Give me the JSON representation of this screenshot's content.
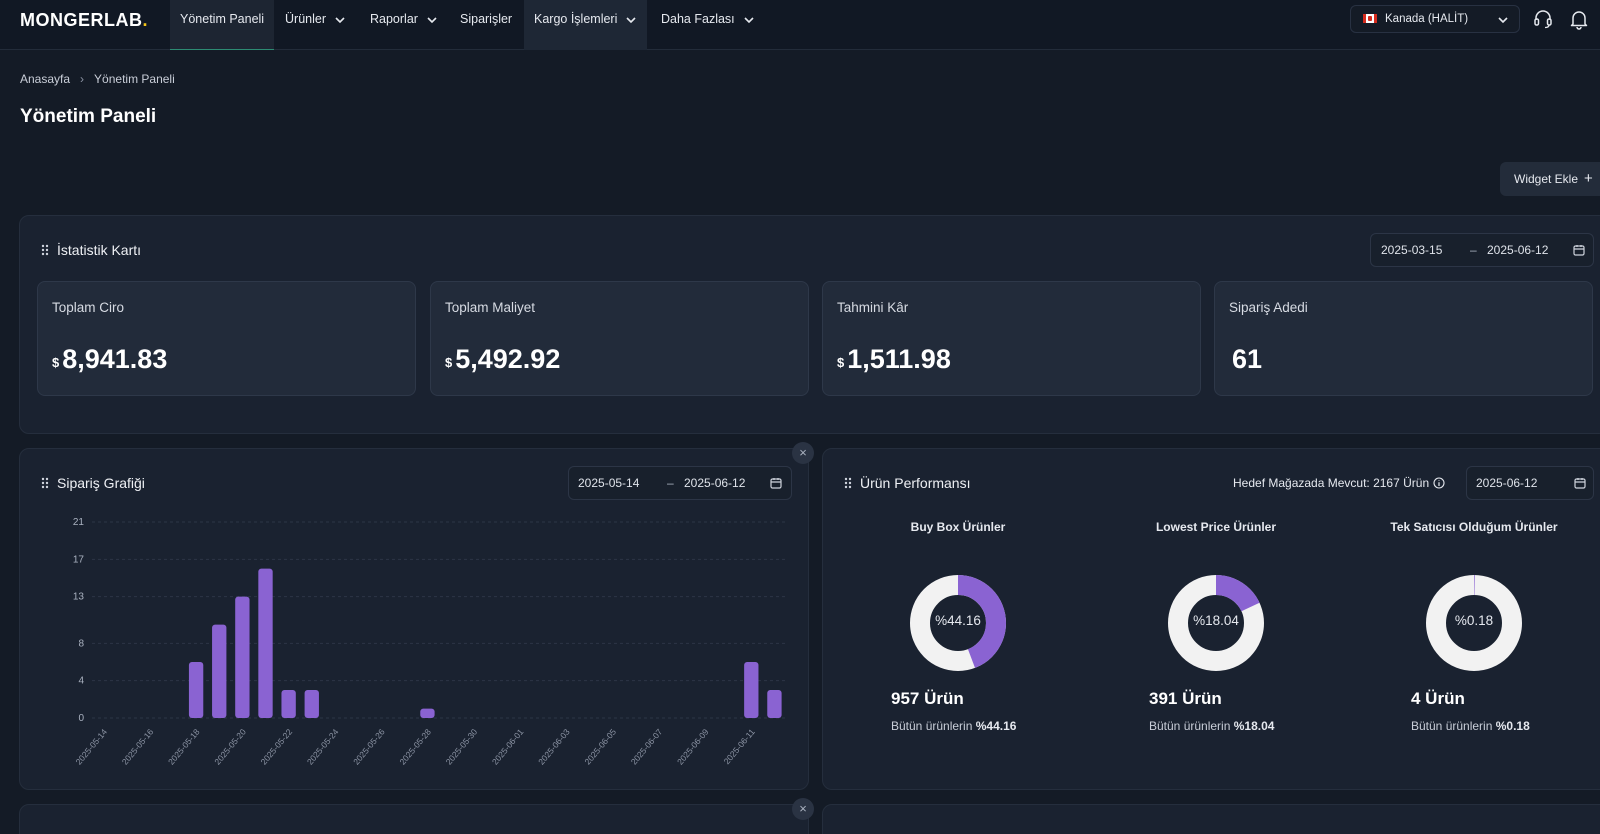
{
  "brand": {
    "logo_text": "MONGERLAB",
    "logo_dot": ".",
    "accent": "#8a63d2",
    "dot_color": "#f5c518"
  },
  "nav": {
    "items": [
      {
        "label": "Yönetim Paneli",
        "has_dropdown": false
      },
      {
        "label": "Ürünler",
        "has_dropdown": true
      },
      {
        "label": "Raporlar",
        "has_dropdown": true
      },
      {
        "label": "Siparişler",
        "has_dropdown": false
      },
      {
        "label": "Kargo İşlemleri",
        "has_dropdown": true
      },
      {
        "label": "Daha Fazlası",
        "has_dropdown": true
      }
    ],
    "country": "Kanada (HALİT)",
    "icons": [
      "headset-icon",
      "bell-icon"
    ]
  },
  "breadcrumb": {
    "home": "Anasayfa",
    "current": "Yönetim Paneli"
  },
  "page_title": "Yönetim Paneli",
  "widget_button": "Widget Ekle",
  "stats": {
    "title": "İstatistik Kartı",
    "date_from": "2025-03-15",
    "date_to": "2025-06-12",
    "cards": [
      {
        "label": "Toplam Ciro",
        "currency": "$",
        "value": "8,941.83"
      },
      {
        "label": "Toplam Maliyet",
        "currency": "$",
        "value": "5,492.92"
      },
      {
        "label": "Tahmini Kâr",
        "currency": "$",
        "value": "1,511.98"
      },
      {
        "label": "Sipariş Adedi",
        "currency": "",
        "value": "61"
      }
    ]
  },
  "order_chart": {
    "title": "Sipariş Grafiği",
    "date_from": "2025-05-14",
    "date_to": "2025-06-12",
    "close": "×"
  },
  "chart_data": {
    "type": "bar",
    "title": "Sipariş Grafiği",
    "yticks": [
      0,
      4,
      8,
      13,
      17,
      21
    ],
    "ylim": [
      0,
      21
    ],
    "grid": true,
    "color": "#8a63d2",
    "xtick_labels": [
      "2025-05-14",
      "2025-05-16",
      "2025-05-18",
      "2025-05-20",
      "2025-05-22",
      "2025-05-24",
      "2025-05-26",
      "2025-05-28",
      "2025-05-30",
      "2025-06-01",
      "2025-06-03",
      "2025-06-05",
      "2025-06-07",
      "2025-06-09",
      "2025-06-11"
    ],
    "categories": [
      "2025-05-14",
      "2025-05-15",
      "2025-05-16",
      "2025-05-17",
      "2025-05-18",
      "2025-05-19",
      "2025-05-20",
      "2025-05-21",
      "2025-05-22",
      "2025-05-23",
      "2025-05-24",
      "2025-05-25",
      "2025-05-26",
      "2025-05-27",
      "2025-05-28",
      "2025-05-29",
      "2025-05-30",
      "2025-05-31",
      "2025-06-01",
      "2025-06-02",
      "2025-06-03",
      "2025-06-04",
      "2025-06-05",
      "2025-06-06",
      "2025-06-07",
      "2025-06-08",
      "2025-06-09",
      "2025-06-10",
      "2025-06-11",
      "2025-06-12"
    ],
    "values": [
      0,
      0,
      0,
      0,
      6,
      10,
      13,
      16,
      3,
      3,
      0,
      0,
      0,
      0,
      1,
      0,
      0,
      0,
      0,
      0,
      0,
      0,
      0,
      0,
      0,
      0,
      0,
      0,
      6,
      3
    ]
  },
  "product_perf": {
    "title": "Ürün Performansı",
    "target_text": "Hedef Mağazada Mevcut: 2167 Ürün",
    "date": "2025-06-12",
    "donuts": [
      {
        "title": "Buy Box Ürünler",
        "percent": 44.16,
        "label": "%44.16",
        "count": "957 Ürün",
        "sub_prefix": "Bütün ürünlerin",
        "sub_value": "%44.16"
      },
      {
        "title": "Lowest Price Ürünler",
        "percent": 18.04,
        "label": "%18.04",
        "count": "391 Ürün",
        "sub_prefix": "Bütün ürünlerin",
        "sub_value": "%18.04"
      },
      {
        "title": "Tek Satıcısı Olduğum Ürünler",
        "percent": 0.18,
        "label": "%0.18",
        "count": "4 Ürün",
        "sub_prefix": "Bütün ürünlerin",
        "sub_value": "%0.18"
      }
    ]
  }
}
